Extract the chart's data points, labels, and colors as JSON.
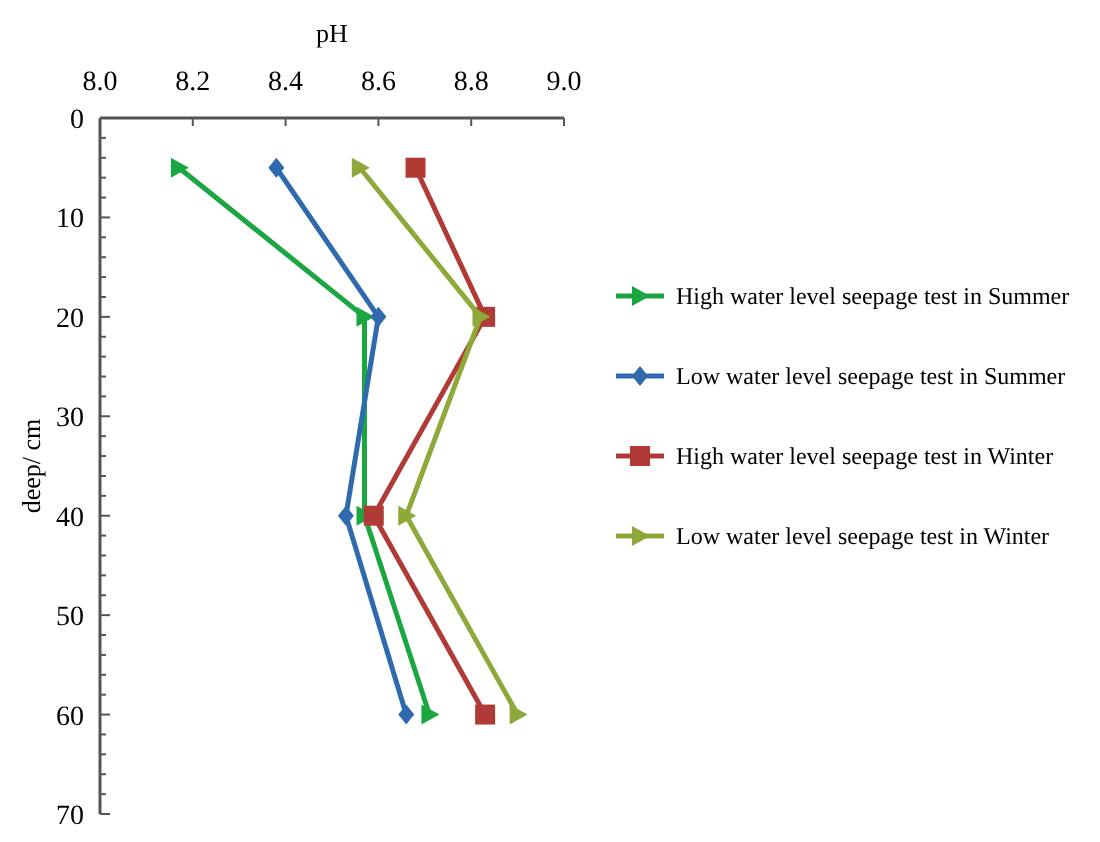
{
  "chart_data": {
    "type": "line",
    "xlabel": "pH",
    "ylabel": "deep/ cm",
    "xlim": [
      8.0,
      9.0
    ],
    "xticks": [
      {
        "value": 8.0,
        "label": "8.0"
      },
      {
        "value": 8.2,
        "label": "8.2"
      },
      {
        "value": 8.4,
        "label": "8.4"
      },
      {
        "value": 8.6,
        "label": "8.6"
      },
      {
        "value": 8.8,
        "label": "8.8"
      },
      {
        "value": 9.0,
        "label": "9.0"
      }
    ],
    "ylim": [
      70,
      0
    ],
    "yticks": [
      0,
      {
        "value": 2,
        "label": null
      },
      {
        "value": 4,
        "label": null
      },
      {
        "value": 6,
        "label": null
      },
      {
        "value": 8,
        "label": null
      },
      10,
      {
        "value": 12,
        "label": null
      },
      {
        "value": 14,
        "label": null
      },
      {
        "value": 16,
        "label": null
      },
      {
        "value": 18,
        "label": null
      },
      20,
      {
        "value": 22,
        "label": null
      },
      {
        "value": 24,
        "label": null
      },
      {
        "value": 26,
        "label": null
      },
      {
        "value": 28,
        "label": null
      },
      30,
      {
        "value": 32,
        "label": null
      },
      {
        "value": 34,
        "label": null
      },
      {
        "value": 36,
        "label": null
      },
      {
        "value": 38,
        "label": null
      },
      40,
      {
        "value": 42,
        "label": null
      },
      {
        "value": 44,
        "label": null
      },
      {
        "value": 46,
        "label": null
      },
      {
        "value": 48,
        "label": null
      },
      50,
      {
        "value": 52,
        "label": null
      },
      {
        "value": 54,
        "label": null
      },
      {
        "value": 56,
        "label": null
      },
      {
        "value": 58,
        "label": null
      },
      60,
      {
        "value": 62,
        "label": null
      },
      {
        "value": 64,
        "label": null
      },
      {
        "value": 66,
        "label": null
      },
      {
        "value": 68,
        "label": null
      },
      70
    ],
    "grid": false,
    "legend": "right",
    "line_style": "solid",
    "series": [
      {
        "name": "High water level seepage test in Summer",
        "color": "#1aa640",
        "marker": "triangle",
        "x": [
          8.17,
          8.57,
          8.57,
          8.71
        ],
        "values": [
          5,
          20,
          40,
          60
        ]
      },
      {
        "name": "Low water level seepage test in Summer",
        "color": "#2e6aad",
        "marker": "diamond",
        "x": [
          8.38,
          8.6,
          8.53,
          8.66
        ],
        "values": [
          5,
          20,
          40,
          60
        ]
      },
      {
        "name": "High water level seepage test in Winter",
        "color": "#b03a36",
        "marker": "square",
        "x": [
          8.68,
          8.83,
          8.59,
          8.83
        ],
        "values": [
          5,
          20,
          40,
          60
        ]
      },
      {
        "name": "Low water level seepage test in Winter",
        "color": "#8fa83a",
        "marker": "triangle",
        "x": [
          8.56,
          8.82,
          8.66,
          8.9
        ],
        "values": [
          5,
          20,
          40,
          60
        ]
      }
    ]
  }
}
